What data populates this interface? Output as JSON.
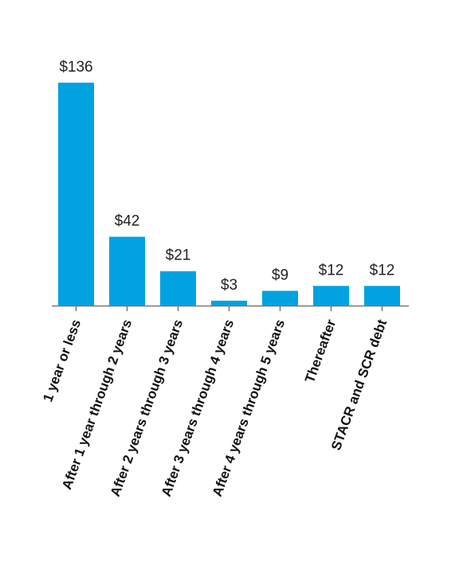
{
  "chart_data": {
    "type": "bar",
    "categories": [
      "1 year or less",
      "After 1 year through 2 years",
      "After 2 years through 3 years",
      "After 3 years through 4 years",
      "After 4 years through 5 years",
      "Thereafter",
      "STACR and SCR debt"
    ],
    "values": [
      136,
      42,
      21,
      3,
      9,
      12,
      12
    ],
    "value_labels": [
      "$136",
      "$42",
      "$21",
      "$3",
      "$9",
      "$12",
      "$12"
    ],
    "color": "#00a3e0"
  }
}
